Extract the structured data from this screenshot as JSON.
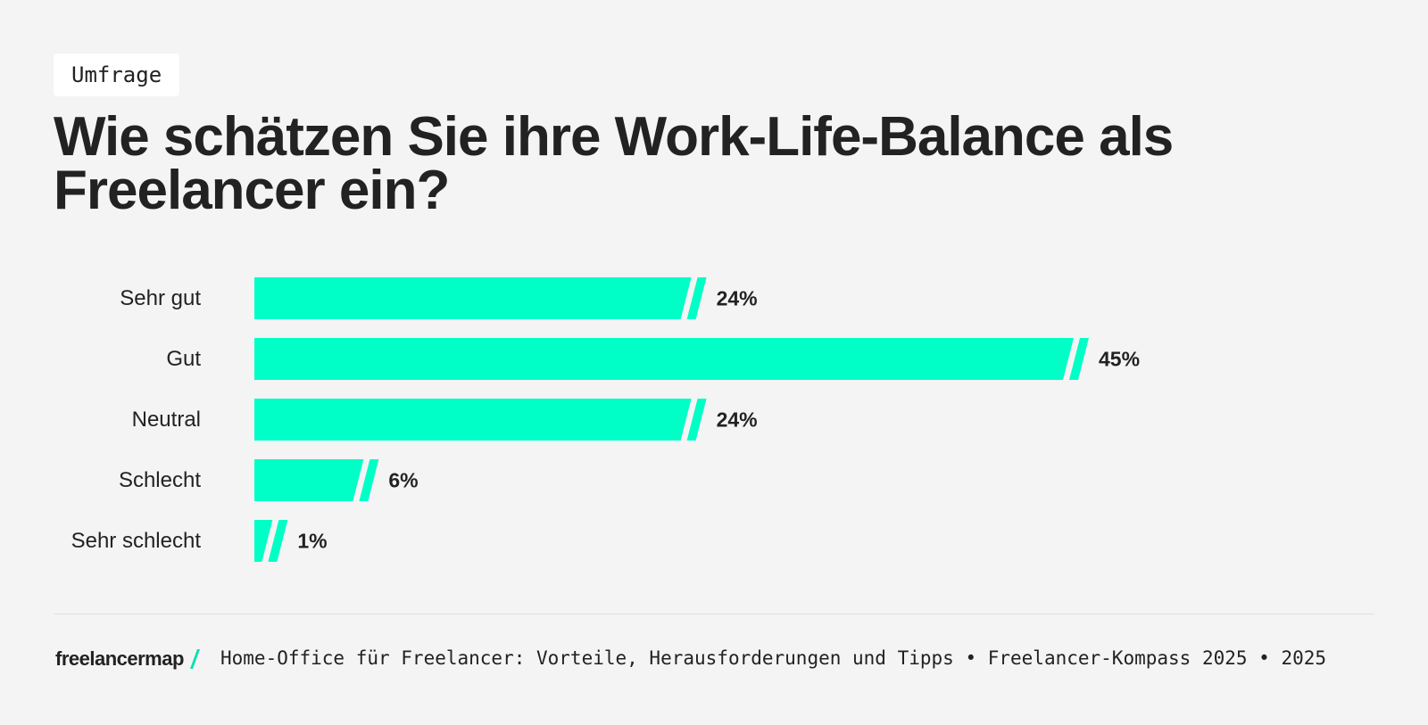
{
  "tag": "Umfrage",
  "chart_data": {
    "type": "bar",
    "orientation": "horizontal",
    "title": "Wie schätzen Sie ihre Work-Life-Balance als Freelancer ein?",
    "categories": [
      "Sehr gut",
      "Gut",
      "Neutral",
      "Schlecht",
      "Sehr schlecht"
    ],
    "values": [
      24,
      45,
      24,
      6,
      1
    ],
    "value_labels": [
      "24%",
      "45%",
      "24%",
      "6%",
      "1%"
    ],
    "color": "#00ffc6"
  },
  "footer": {
    "brand": "freelancermap",
    "source": "Home-Office für Freelancer: Vorteile, Herausforderungen und Tipps • Freelancer-Kompass 2025 • 2025"
  }
}
